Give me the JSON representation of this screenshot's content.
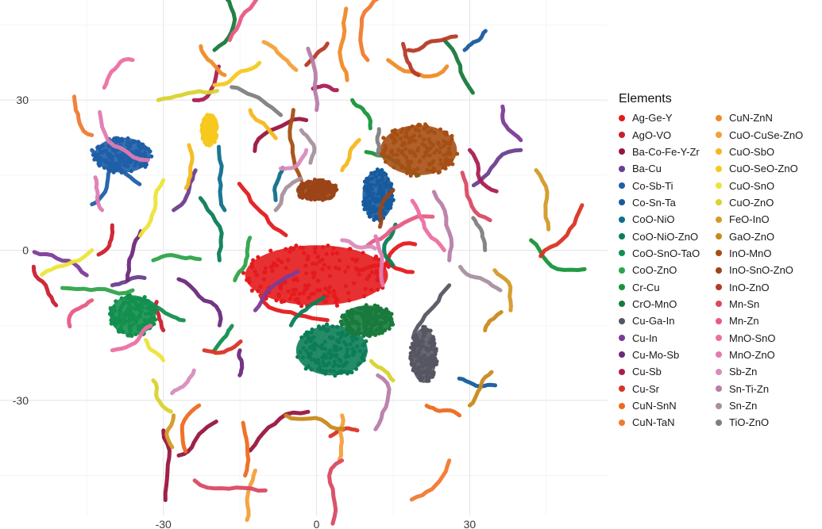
{
  "chart_data": {
    "type": "scatter",
    "title": "",
    "xlabel": "",
    "ylabel": "",
    "xlim": [
      -62,
      57
    ],
    "ylim": [
      -53,
      50
    ],
    "x_ticks": [
      -30,
      0,
      30
    ],
    "y_ticks": [
      -30,
      0,
      30
    ],
    "grid": true,
    "legend": {
      "title": "Elements",
      "position": "right"
    },
    "series": [
      {
        "name": "Ag-Ge-Y",
        "color": "#e41a1c",
        "clusters": [
          {
            "x": 0,
            "y": -5,
            "rx": 14,
            "ry": 6
          }
        ],
        "points": [
          [
            -11,
            -9
          ],
          [
            -6,
            3
          ],
          [
            8,
            -4
          ],
          [
            12,
            -6
          ]
        ]
      },
      {
        "name": "AgO-VO",
        "color": "#cb1f2e",
        "points": [
          [
            -30,
            -16
          ],
          [
            -40,
            5
          ],
          [
            -51,
            -11
          ]
        ]
      },
      {
        "name": "Ba-Co-Fe-Y-Zr",
        "color": "#99163d",
        "points": [
          [
            -30,
            -36
          ],
          [
            -27,
            -41
          ],
          [
            -2,
            26
          ],
          [
            -13,
            -40
          ]
        ]
      },
      {
        "name": "Ba-Cu",
        "color": "#6b3f8f",
        "points": [
          [
            -40,
            -7
          ],
          [
            40,
            20
          ],
          [
            -28,
            8
          ]
        ]
      },
      {
        "name": "Co-Sb-Ti",
        "color": "#1f5fa8",
        "clusters": [
          {
            "x": -38,
            "y": 19,
            "rx": 5.5,
            "ry": 3.5
          }
        ],
        "points": [
          [
            -40,
            17
          ],
          [
            -44,
            20
          ]
        ]
      },
      {
        "name": "Co-Sn-Ta",
        "color": "#175b9e",
        "clusters": [
          {
            "x": 12,
            "y": 11,
            "rx": 3,
            "ry": 5
          }
        ],
        "points": [
          [
            29,
            40
          ],
          [
            35,
            -27
          ]
        ]
      },
      {
        "name": "CoO-NiO",
        "color": "#0f6f8c",
        "points": [
          [
            -8,
            10
          ],
          [
            -18,
            8
          ]
        ]
      },
      {
        "name": "CoO-NiO-ZnO",
        "color": "#0c7d57",
        "clusters": [
          {
            "x": 3,
            "y": -20,
            "rx": 7,
            "ry": 5
          }
        ],
        "points": [
          [
            -19,
            -2
          ],
          [
            15,
            -3
          ],
          [
            -5,
            -15
          ]
        ]
      },
      {
        "name": "CoO-SnO-TaO",
        "color": "#138f4e",
        "clusters": [
          {
            "x": -36,
            "y": -13,
            "rx": 4.5,
            "ry": 4
          }
        ],
        "points": [
          [
            -26,
            -14
          ],
          [
            -20,
            -20
          ]
        ]
      },
      {
        "name": "CoO-ZnO",
        "color": "#2ea44a",
        "points": [
          [
            -16,
            -6
          ],
          [
            -32,
            -2
          ],
          [
            -36,
            -8
          ]
        ]
      },
      {
        "name": "Cr-Cu",
        "color": "#17953b",
        "points": [
          [
            7,
            30
          ],
          [
            20,
            15
          ],
          [
            42,
            2
          ]
        ]
      },
      {
        "name": "CrO-MnO",
        "color": "#187a3c",
        "clusters": [
          {
            "x": 10,
            "y": -14,
            "rx": 5,
            "ry": 3
          }
        ],
        "points": [
          [
            -20,
            40
          ],
          [
            25,
            42
          ]
        ]
      },
      {
        "name": "Cu-Ga-In",
        "color": "#565662",
        "clusters": [
          {
            "x": 21,
            "y": -21,
            "rx": 2.5,
            "ry": 5.5
          }
        ],
        "points": [
          [
            26,
            -7
          ]
        ]
      },
      {
        "name": "Cu-In",
        "color": "#7d3c98",
        "points": [
          [
            -45,
            -5
          ],
          [
            -12,
            -12
          ],
          [
            40,
            22
          ]
        ]
      },
      {
        "name": "Cu-Mo-Sb",
        "color": "#6d2a7c",
        "points": [
          [
            -37,
            -6
          ],
          [
            -19,
            -15
          ],
          [
            -15,
            -20
          ]
        ]
      },
      {
        "name": "Cu-Sb",
        "color": "#a81d54",
        "points": [
          [
            -24,
            30
          ],
          [
            4,
            32
          ],
          [
            30,
            20
          ]
        ]
      },
      {
        "name": "Cu-Sr",
        "color": "#d93425",
        "points": [
          [
            -22,
            -20
          ],
          [
            8,
            -36
          ],
          [
            52,
            9
          ]
        ]
      },
      {
        "name": "CuN-SnN",
        "color": "#ee6a1f",
        "points": [
          [
            -23,
            -31
          ],
          [
            -14,
            -45
          ],
          [
            28,
            -33
          ]
        ]
      },
      {
        "name": "CuN-TaN",
        "color": "#f07a30",
        "points": [
          [
            -44,
            23
          ],
          [
            10,
            38
          ],
          [
            26,
            -42
          ]
        ]
      },
      {
        "name": "CuN-ZnN",
        "color": "#f08a28",
        "points": [
          [
            -18,
            35
          ],
          [
            6,
            34
          ],
          [
            14,
            38
          ]
        ]
      },
      {
        "name": "CuO-CuSe-ZnO",
        "color": "#f3a03a",
        "points": [
          [
            -4,
            36
          ],
          [
            -12,
            -44
          ],
          [
            5,
            -33
          ]
        ]
      },
      {
        "name": "CuO-SbO",
        "color": "#f5b81c",
        "points": [
          [
            5,
            16
          ],
          [
            -25,
            21
          ],
          [
            -13,
            28
          ]
        ]
      },
      {
        "name": "CuO-SeO-ZnO",
        "color": "#f7c81e",
        "clusters": [
          {
            "x": -21,
            "y": 24,
            "rx": 1.5,
            "ry": 3
          }
        ],
        "points": [
          [
            -20,
            33
          ]
        ]
      },
      {
        "name": "CuO-SnO",
        "color": "#ece43a",
        "points": [
          [
            -30,
            -22
          ],
          [
            -44,
            0
          ],
          [
            -30,
            14
          ]
        ]
      },
      {
        "name": "CuO-ZnO",
        "color": "#d9d22e",
        "points": [
          [
            -31,
            30
          ],
          [
            -32,
            -26
          ],
          [
            15,
            -26
          ]
        ]
      },
      {
        "name": "FeO-InO",
        "color": "#d49a27",
        "points": [
          [
            -28,
            -33
          ],
          [
            43,
            16
          ],
          [
            38,
            -12
          ]
        ]
      },
      {
        "name": "GaO-ZnO",
        "color": "#c98a1c",
        "points": [
          [
            -6,
            -33
          ],
          [
            30,
            -31
          ],
          [
            33,
            -16
          ]
        ]
      },
      {
        "name": "InO-MnO",
        "color": "#a64f14",
        "clusters": [
          {
            "x": 20,
            "y": 20,
            "rx": 7.5,
            "ry": 5
          }
        ],
        "points": [
          [
            -3,
            14
          ]
        ]
      },
      {
        "name": "InO-SnO-ZnO",
        "color": "#9b4418",
        "clusters": [
          {
            "x": 0,
            "y": 12,
            "rx": 4,
            "ry": 2
          }
        ],
        "points": [
          [
            15,
            12
          ]
        ]
      },
      {
        "name": "InO-ZnO",
        "color": "#b53a27",
        "points": [
          [
            -2,
            37
          ],
          [
            20,
            35
          ],
          [
            18,
            40
          ]
        ]
      },
      {
        "name": "Mn-Sn",
        "color": "#d94a63",
        "points": [
          [
            34,
            6
          ],
          [
            -10,
            -48
          ],
          [
            5,
            -42
          ]
        ]
      },
      {
        "name": "Mn-Zn",
        "color": "#e85a82",
        "points": [
          [
            -44,
            -10
          ],
          [
            -17,
            42
          ],
          [
            10,
            1
          ]
        ]
      },
      {
        "name": "MnO-SnO",
        "color": "#ec6fa2",
        "points": [
          [
            25,
            0
          ],
          [
            -40,
            -20
          ],
          [
            -36,
            38
          ]
        ]
      },
      {
        "name": "MnO-ZnO",
        "color": "#e07bb0",
        "points": [
          [
            -42,
            8
          ],
          [
            -33,
            18
          ],
          [
            13,
            -7
          ]
        ]
      },
      {
        "name": "Sb-Zn",
        "color": "#d98bbd",
        "points": [
          [
            -2,
            20
          ],
          [
            5,
            2
          ],
          [
            -24,
            -24
          ]
        ]
      },
      {
        "name": "Sn-Ti-Zn",
        "color": "#b87da8",
        "points": [
          [
            0,
            28
          ],
          [
            12,
            -25
          ],
          [
            26,
            -2
          ]
        ]
      },
      {
        "name": "Sn-Zn",
        "color": "#a9909f",
        "points": [
          [
            -3,
            24
          ],
          [
            -8,
            8
          ],
          [
            36,
            -8
          ]
        ]
      },
      {
        "name": "TiO-ZnO",
        "color": "#7f7f7f",
        "points": [
          [
            -7,
            27
          ],
          [
            33,
            0
          ],
          [
            12,
            19
          ]
        ]
      }
    ]
  },
  "legend_title": "Elements"
}
